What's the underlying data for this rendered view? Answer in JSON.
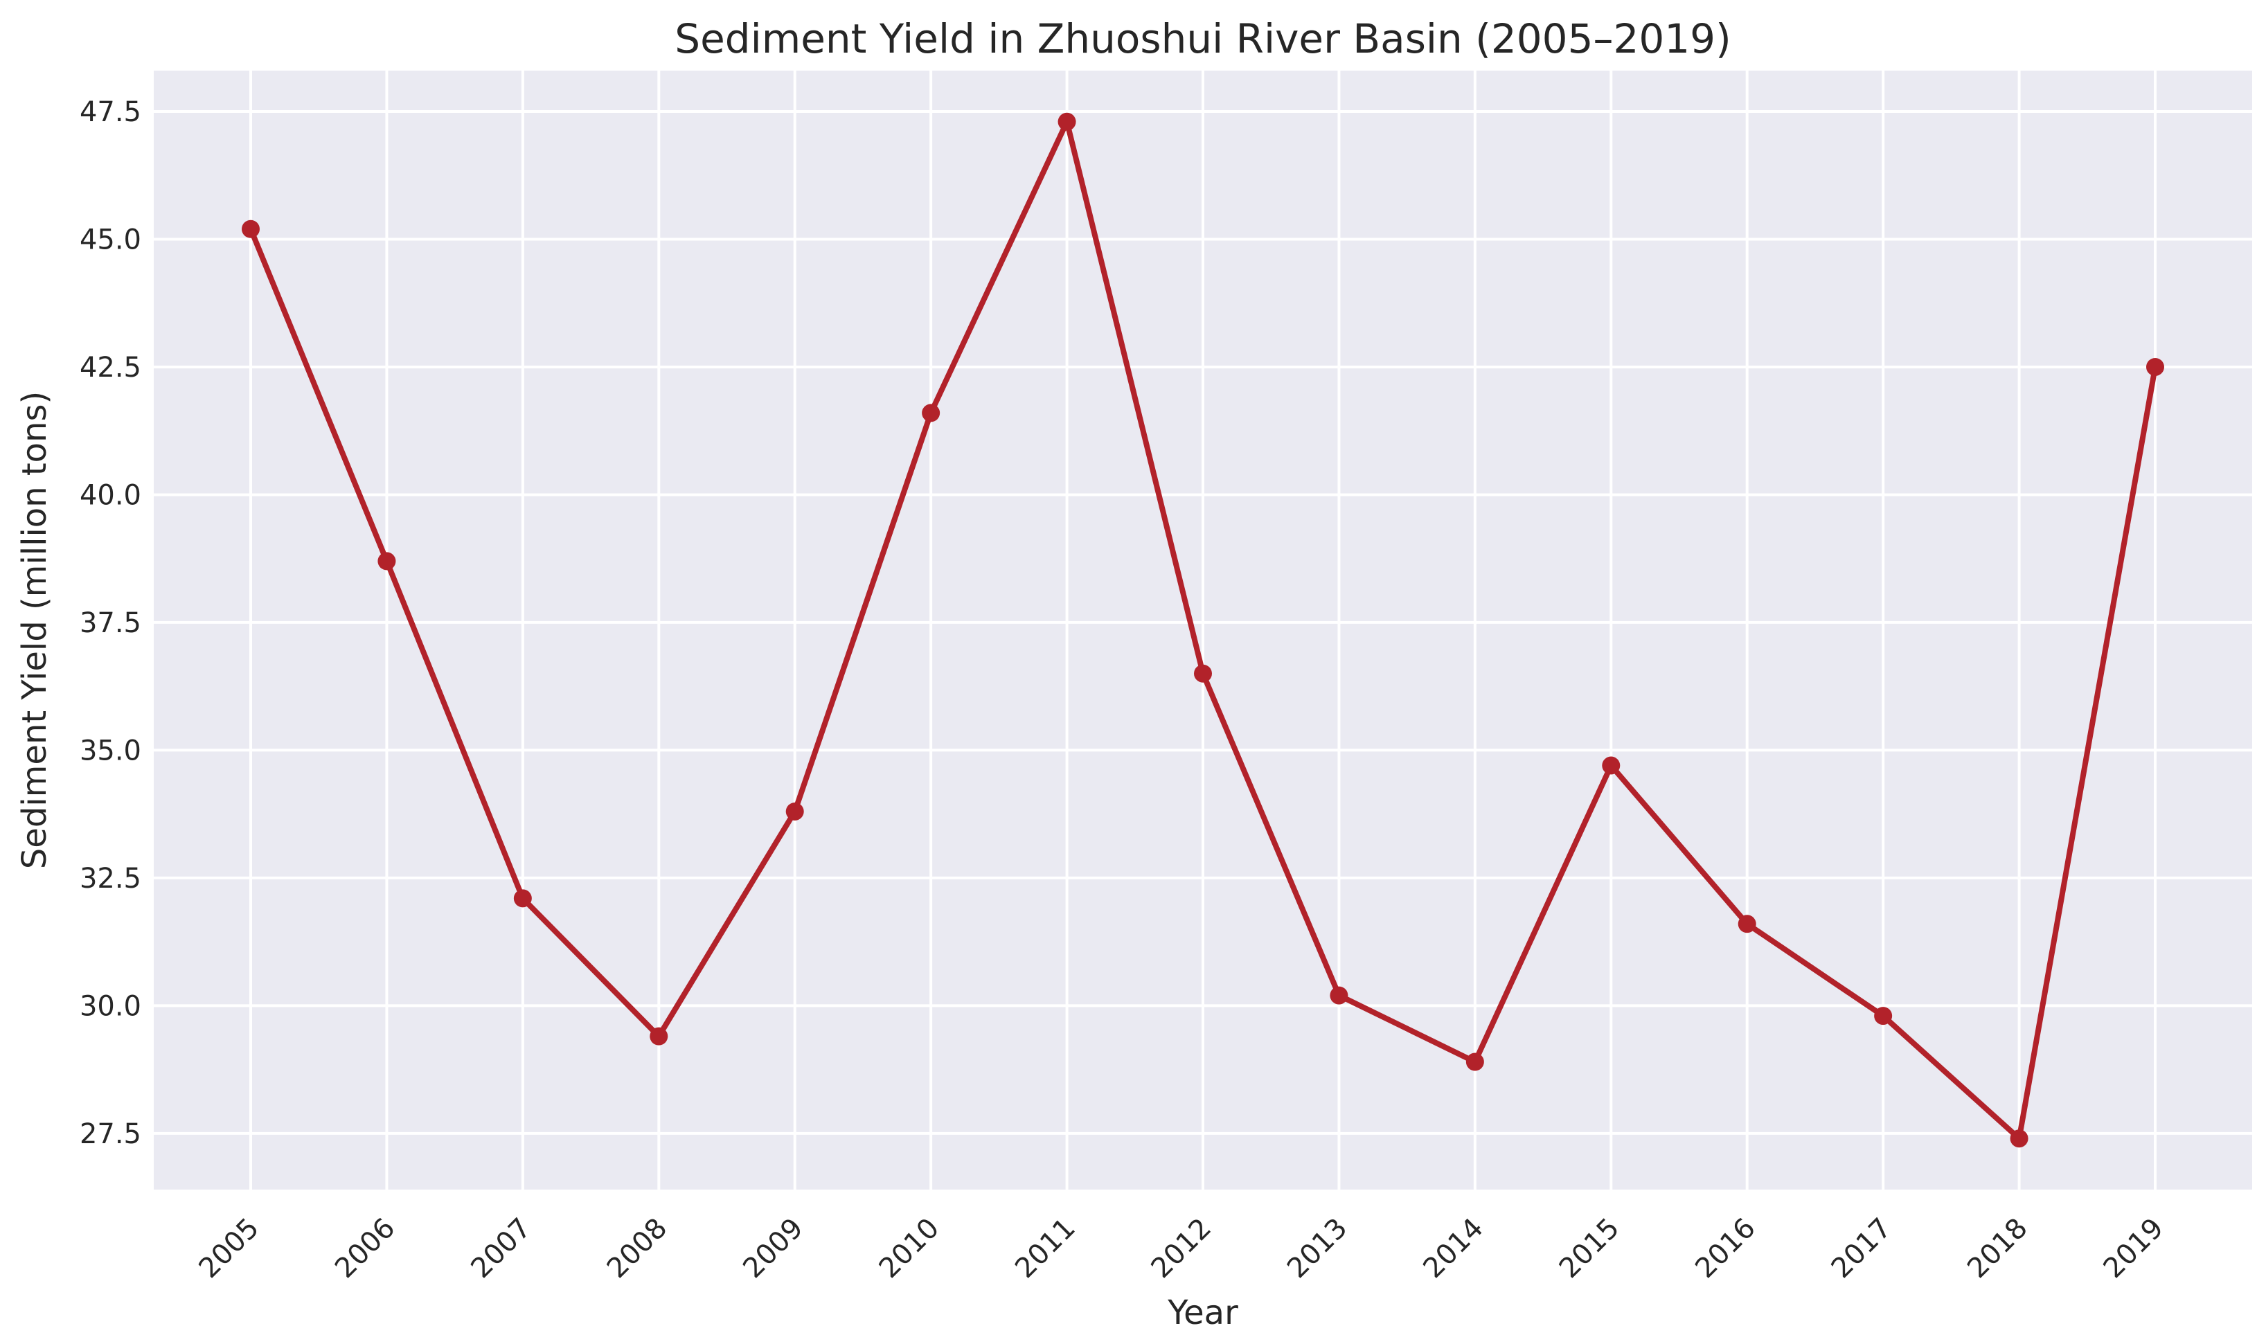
{
  "chart_data": {
    "type": "line",
    "title": "Sediment Yield in Zhuoshui River Basin (2005–2019)",
    "xlabel": "Year",
    "ylabel": "Sediment Yield (million tons)",
    "categories": [
      "2005",
      "2006",
      "2007",
      "2008",
      "2009",
      "2010",
      "2011",
      "2012",
      "2013",
      "2014",
      "2015",
      "2016",
      "2017",
      "2018",
      "2019"
    ],
    "series": [
      {
        "values": [
          45.2,
          38.7,
          32.1,
          29.4,
          33.8,
          41.6,
          47.3,
          36.5,
          30.2,
          28.9,
          34.7,
          31.6,
          29.8,
          27.4,
          42.5
        ],
        "color": "#b2222a"
      }
    ],
    "ylim": [
      26.4,
      48.3
    ],
    "yticks": [
      "27.5",
      "30.0",
      "32.5",
      "35.0",
      "37.5",
      "40.0",
      "42.5",
      "45.0",
      "47.5"
    ],
    "grid": true,
    "background_color": "#eaeaf2",
    "grid_color": "#ffffff"
  }
}
